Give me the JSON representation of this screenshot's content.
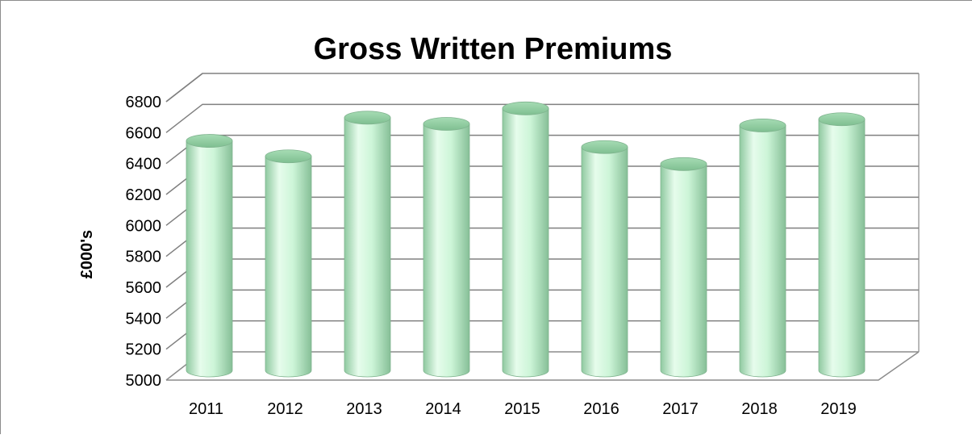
{
  "chart_data": {
    "type": "bar",
    "title": "Gross Written Premiums",
    "xlabel": "",
    "ylabel": "£000's",
    "categories": [
      "2011",
      "2012",
      "2013",
      "2014",
      "2015",
      "2016",
      "2017",
      "2018",
      "2019"
    ],
    "values": [
      6510,
      6410,
      6660,
      6620,
      6720,
      6470,
      6360,
      6610,
      6650
    ],
    "ylim": [
      5000,
      6800
    ],
    "yticks": [
      5000,
      5200,
      5400,
      5600,
      5800,
      6000,
      6200,
      6400,
      6600,
      6800
    ],
    "grid": true,
    "legend": "none",
    "bar_color": "#c8f5d6",
    "bar_shape": "cylinder-3d"
  }
}
